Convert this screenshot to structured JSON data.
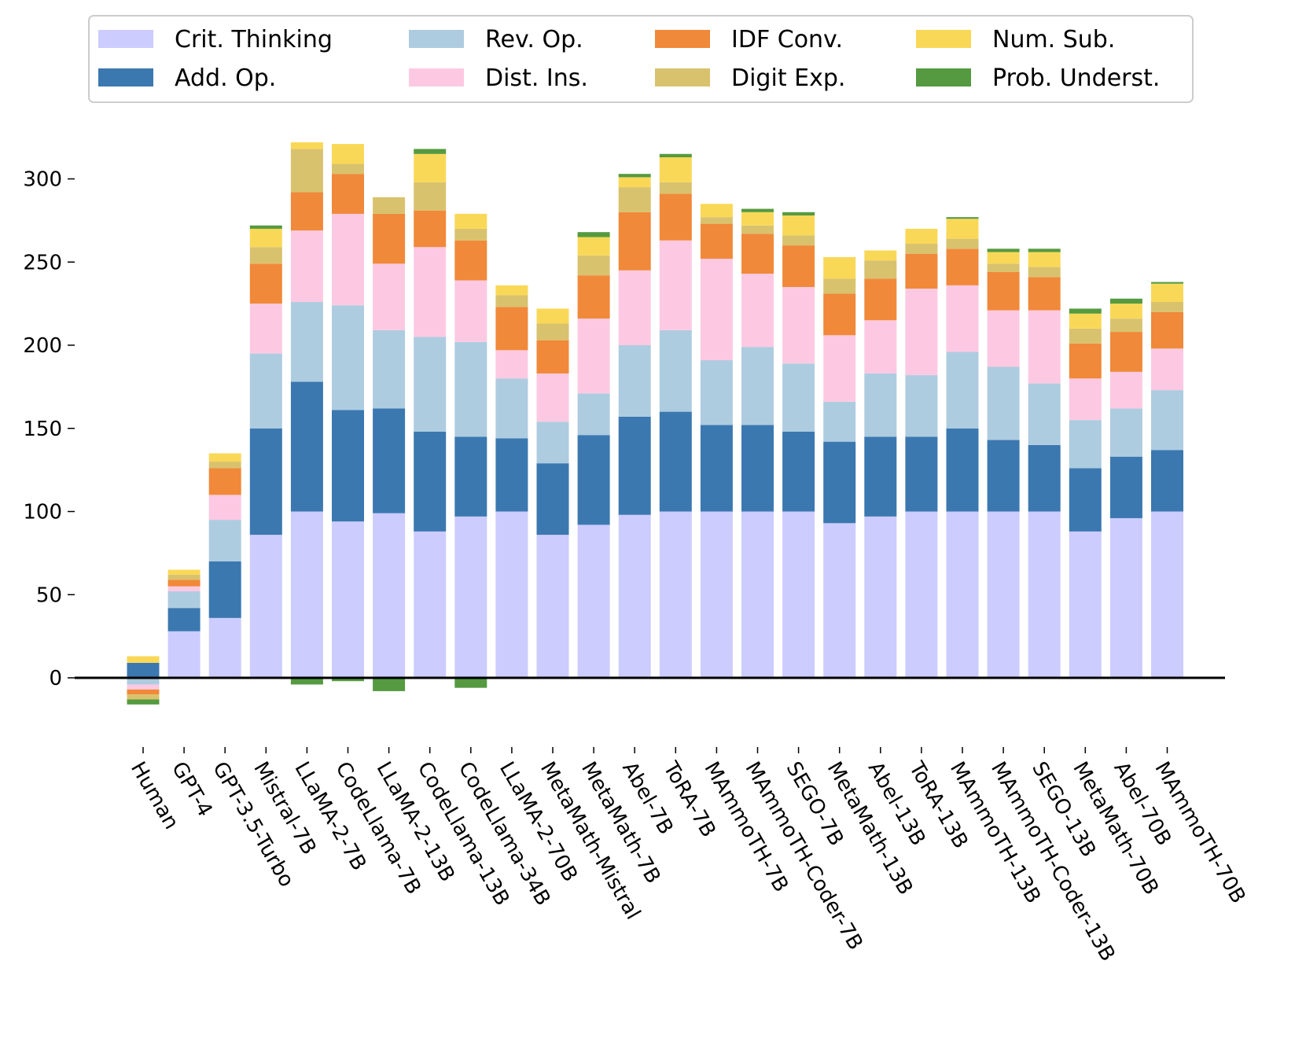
{
  "chart_data": {
    "type": "bar",
    "stacked": true,
    "categories": [
      "Human",
      "GPT-4",
      "GPT-3.5-Turbo",
      "Mistral-7B",
      "LLaMA-2-7B",
      "CodeLlama-7B",
      "LLaMA-2-13B",
      "CodeLlama-13B",
      "CodeLlama-34B",
      "LLaMA-2-70B",
      "MetaMath-Mistral",
      "MetaMath-7B",
      "Abel-7B",
      "ToRA-7B",
      "MAmmoTH-7B",
      "MAmmoTH-Coder-7B",
      "SEGO-7B",
      "MetaMath-13B",
      "Abel-13B",
      "ToRA-13B",
      "MAmmoTH-13B",
      "MAmmoTH-Coder-13B",
      "SEGO-13B",
      "MetaMath-70B",
      "Abel-70B",
      "MAmmoTH-70B"
    ],
    "series": [
      {
        "name": "Crit. Thinking",
        "color": "#ccccff",
        "values": [
          0,
          28,
          36,
          86,
          100,
          94,
          99,
          88,
          97,
          100,
          86,
          92,
          98,
          100,
          100,
          100,
          100,
          93,
          97,
          100,
          100,
          100,
          100,
          88,
          96,
          100
        ]
      },
      {
        "name": "Add. Op.",
        "color": "#3b78b0",
        "values": [
          9,
          14,
          34,
          64,
          78,
          67,
          63,
          60,
          48,
          44,
          43,
          54,
          59,
          60,
          52,
          52,
          48,
          49,
          48,
          45,
          50,
          43,
          40,
          38,
          37,
          37
        ]
      },
      {
        "name": "Rev. Op.",
        "color": "#aecce0",
        "values": [
          -4,
          10,
          25,
          45,
          48,
          63,
          47,
          57,
          57,
          36,
          25,
          25,
          43,
          49,
          39,
          47,
          41,
          24,
          38,
          37,
          46,
          44,
          37,
          29,
          29,
          36
        ]
      },
      {
        "name": "Dist. Ins.",
        "color": "#fdc9e2",
        "values": [
          -3,
          3,
          15,
          30,
          43,
          55,
          40,
          54,
          37,
          17,
          29,
          45,
          45,
          54,
          61,
          44,
          46,
          40,
          32,
          52,
          40,
          34,
          44,
          25,
          22,
          25
        ]
      },
      {
        "name": "IDF Conv.",
        "color": "#f08939",
        "values": [
          -3,
          4,
          16,
          24,
          23,
          24,
          30,
          22,
          24,
          26,
          20,
          26,
          35,
          28,
          21,
          24,
          25,
          25,
          25,
          21,
          22,
          23,
          20,
          21,
          24,
          22
        ]
      },
      {
        "name": "Digit Exp.",
        "color": "#d9c26e",
        "values": [
          -3,
          3,
          4,
          10,
          26,
          6,
          10,
          17,
          7,
          7,
          10,
          12,
          15,
          7,
          4,
          5,
          6,
          9,
          11,
          6,
          6,
          5,
          6,
          9,
          8,
          6
        ]
      },
      {
        "name": "Num. Sub.",
        "color": "#fad857",
        "values": [
          4,
          3,
          5,
          11,
          4,
          12,
          0,
          17,
          9,
          6,
          9,
          11,
          6,
          15,
          8,
          8,
          12,
          13,
          6,
          9,
          12,
          7,
          9,
          9,
          9,
          11
        ]
      },
      {
        "name": "Prob. Underst.",
        "color": "#559a40",
        "values": [
          -3,
          0,
          0,
          2,
          -4,
          -2,
          -8,
          3,
          -6,
          0,
          0,
          3,
          2,
          2,
          0,
          2,
          2,
          0,
          0,
          0,
          1,
          2,
          2,
          3,
          3,
          1
        ]
      }
    ],
    "ylim": [
      -30,
      325
    ],
    "yticks": [
      0,
      50,
      100,
      150,
      200,
      250,
      300
    ],
    "legend": {
      "placement": "top",
      "columns": 4
    },
    "grid": false
  }
}
